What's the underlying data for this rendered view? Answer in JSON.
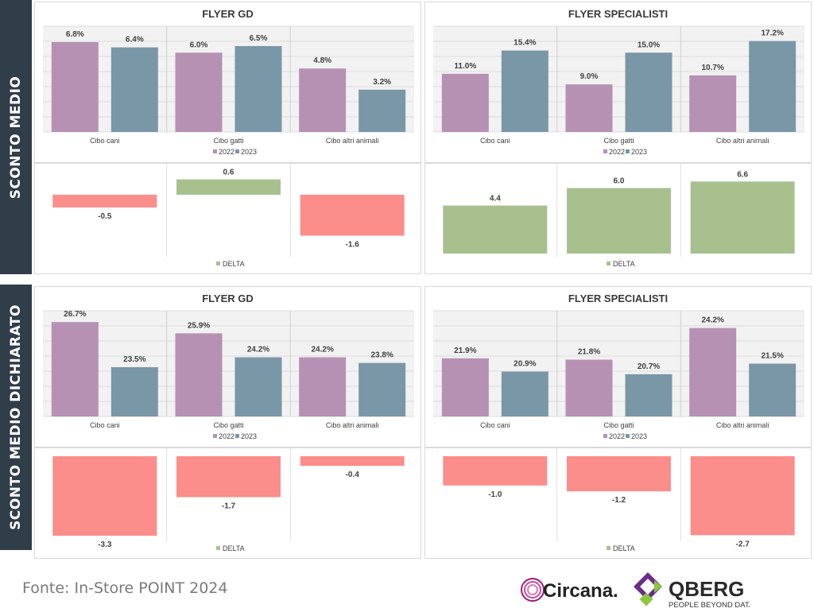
{
  "sections": [
    {
      "label": "SCONTO MEDIO"
    },
    {
      "label": "SCONTO MEDIO DICHIARATO"
    }
  ],
  "colors": {
    "s2022": "#b791b3",
    "s2023": "#7a97a8",
    "neg": "#fb8d8a",
    "pos": "#a8c08e",
    "grid": "#dddddd"
  },
  "chart_data": [
    {
      "id": "sm-gd",
      "type": "bar",
      "title": "FLYER GD",
      "categories": [
        "Cibo cani",
        "Cibo gatti",
        "Cibo altri animali"
      ],
      "series": [
        {
          "name": "2022",
          "values": [
            6.8,
            6.0,
            4.8
          ],
          "labels": [
            "6.8%",
            "6.0%",
            "4.8%"
          ]
        },
        {
          "name": "2023",
          "values": [
            6.4,
            6.5,
            3.2
          ],
          "labels": [
            "6.4%",
            "6.5%",
            "3.2%"
          ]
        }
      ],
      "ylim": [
        0,
        8
      ],
      "grid": true,
      "legend": "bottom"
    },
    {
      "id": "sm-sp",
      "type": "bar",
      "title": "FLYER SPECIALISTI",
      "categories": [
        "Cibo cani",
        "Cibo gatti",
        "Cibo altri animali"
      ],
      "series": [
        {
          "name": "2022",
          "values": [
            11.0,
            9.0,
            10.7
          ],
          "labels": [
            "11.0%",
            "9.0%",
            "10.7%"
          ]
        },
        {
          "name": "2023",
          "values": [
            15.4,
            15.0,
            17.2
          ],
          "labels": [
            "15.4%",
            "15.0%",
            "17.2%"
          ]
        }
      ],
      "ylim": [
        0,
        20
      ],
      "grid": true,
      "legend": "bottom"
    },
    {
      "id": "sm-gd-delta",
      "type": "bar",
      "series": [
        {
          "name": "DELTA",
          "values": [
            -0.5,
            0.6,
            -1.6
          ],
          "labels": [
            "-0.5",
            "0.6",
            "-1.6"
          ]
        }
      ],
      "ylim": [
        -2.3,
        0.9
      ],
      "grid": true,
      "legend": "bottom"
    },
    {
      "id": "sm-sp-delta",
      "type": "bar",
      "series": [
        {
          "name": "DELTA",
          "values": [
            4.4,
            6.0,
            6.6
          ],
          "labels": [
            "4.4",
            "6.0",
            "6.6"
          ]
        }
      ],
      "ylim": [
        0,
        7.5
      ],
      "grid": true,
      "legend": "bottom"
    },
    {
      "id": "smd-gd",
      "type": "bar",
      "title": "FLYER GD",
      "categories": [
        "Cibo cani",
        "Cibo gatti",
        "Cibo altri animali"
      ],
      "series": [
        {
          "name": "2022",
          "values": [
            26.7,
            25.9,
            24.2
          ],
          "labels": [
            "26.7%",
            "25.9%",
            "24.2%"
          ]
        },
        {
          "name": "2023",
          "values": [
            23.5,
            24.2,
            23.8
          ],
          "labels": [
            "23.5%",
            "24.2%",
            "23.8%"
          ]
        }
      ],
      "ylim": [
        20,
        27.5
      ],
      "grid": true,
      "legend": "bottom"
    },
    {
      "id": "smd-sp",
      "type": "bar",
      "title": "FLYER SPECIALISTI",
      "categories": [
        "Cibo cani",
        "Cibo gatti",
        "Cibo altri animali"
      ],
      "series": [
        {
          "name": "2022",
          "values": [
            21.9,
            21.8,
            24.2
          ],
          "labels": [
            "21.9%",
            "21.8%",
            "24.2%"
          ]
        },
        {
          "name": "2023",
          "values": [
            20.9,
            20.7,
            21.5
          ],
          "labels": [
            "20.9%",
            "20.7%",
            "21.5%"
          ]
        }
      ],
      "ylim": [
        17.5,
        25.5
      ],
      "grid": true,
      "legend": "bottom"
    },
    {
      "id": "smd-gd-delta",
      "type": "bar",
      "series": [
        {
          "name": "DELTA",
          "values": [
            -3.3,
            -1.7,
            -0.4
          ],
          "labels": [
            "-3.3",
            "-1.7",
            "-0.4"
          ]
        }
      ],
      "ylim": [
        -3.4,
        0
      ],
      "grid": true,
      "legend": "bottom"
    },
    {
      "id": "smd-sp-delta",
      "type": "bar",
      "series": [
        {
          "name": "DELTA",
          "values": [
            -1.0,
            -1.2,
            -2.7
          ],
          "labels": [
            "-1.0",
            "-1.2",
            "-2.7"
          ]
        }
      ],
      "ylim": [
        -2.8,
        0
      ],
      "grid": true,
      "legend": "bottom"
    }
  ],
  "footer": {
    "source": "Fonte: In-Store POINT 2024",
    "logo1": "Circana.",
    "logo2_name": "QBERG",
    "logo2_tagline": "PEOPLE BEYOND DATA"
  }
}
